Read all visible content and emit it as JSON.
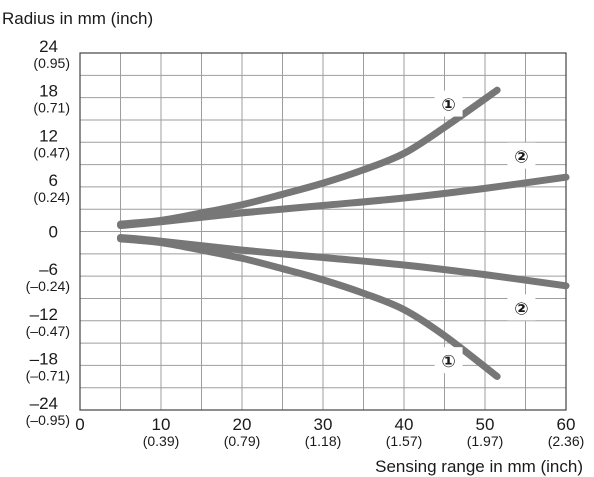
{
  "chart_data": {
    "type": "line",
    "xlabel": "Sensing range in mm (inch)",
    "ylabel": "Radius in mm (inch)",
    "xlim": [
      0,
      60
    ],
    "ylim": [
      -24,
      24
    ],
    "grid": true,
    "x_ticks": [
      {
        "value": 0,
        "label": "0",
        "sub": ""
      },
      {
        "value": 10,
        "label": "10",
        "sub": "(0.39)"
      },
      {
        "value": 20,
        "label": "20",
        "sub": "(0.79)"
      },
      {
        "value": 30,
        "label": "30",
        "sub": "(1.18)"
      },
      {
        "value": 40,
        "label": "40",
        "sub": "(1.57)"
      },
      {
        "value": 50,
        "label": "50",
        "sub": "(1.97)"
      },
      {
        "value": 60,
        "label": "60",
        "sub": "(2.36)"
      }
    ],
    "y_ticks": [
      {
        "value": 24,
        "label": "24",
        "sub": "(0.95)"
      },
      {
        "value": 18,
        "label": "18",
        "sub": "(0.71)"
      },
      {
        "value": 12,
        "label": "12",
        "sub": "(0.47)"
      },
      {
        "value": 6,
        "label": "6",
        "sub": "(0.24)"
      },
      {
        "value": 0,
        "label": "0",
        "sub": ""
      },
      {
        "value": -6,
        "label": "–6",
        "sub": "(–0.24)"
      },
      {
        "value": -12,
        "label": "–12",
        "sub": "(–0.47)"
      },
      {
        "value": -18,
        "label": "–18",
        "sub": "(–0.71)"
      },
      {
        "value": -24,
        "label": "–24",
        "sub": "(–0.95)"
      }
    ],
    "series": [
      {
        "label": "①",
        "x": [
          5,
          10,
          15,
          20,
          25,
          30,
          35,
          40,
          45,
          51.5
        ],
        "y": [
          1.0,
          1.5,
          2.5,
          3.6,
          5.0,
          6.5,
          8.3,
          10.5,
          14.0,
          19.0
        ]
      },
      {
        "label": "①",
        "x": [
          5,
          10,
          15,
          20,
          25,
          30,
          35,
          40,
          45,
          51.5
        ],
        "y": [
          -1.0,
          -1.5,
          -2.5,
          -3.6,
          -5.0,
          -6.5,
          -8.3,
          -10.5,
          -14.0,
          -19.5
        ]
      },
      {
        "label": "②",
        "x": [
          5,
          10,
          20,
          30,
          40,
          50,
          60
        ],
        "y": [
          0.8,
          1.3,
          2.5,
          3.5,
          4.5,
          5.8,
          7.3
        ]
      },
      {
        "label": "②",
        "x": [
          5,
          10,
          20,
          30,
          40,
          50,
          60
        ],
        "y": [
          -0.8,
          -1.3,
          -2.5,
          -3.5,
          -4.5,
          -5.8,
          -7.3
        ]
      }
    ],
    "annotations": [
      {
        "text": "①",
        "x": 45.5,
        "y": 17.2
      },
      {
        "text": "②",
        "x": 54.5,
        "y": 10.2
      },
      {
        "text": "②",
        "x": 54.5,
        "y": -10.2
      },
      {
        "text": "①",
        "x": 45.5,
        "y": -17.3
      }
    ],
    "line_color": "#777777",
    "grid_color": "#9e9e9e"
  }
}
